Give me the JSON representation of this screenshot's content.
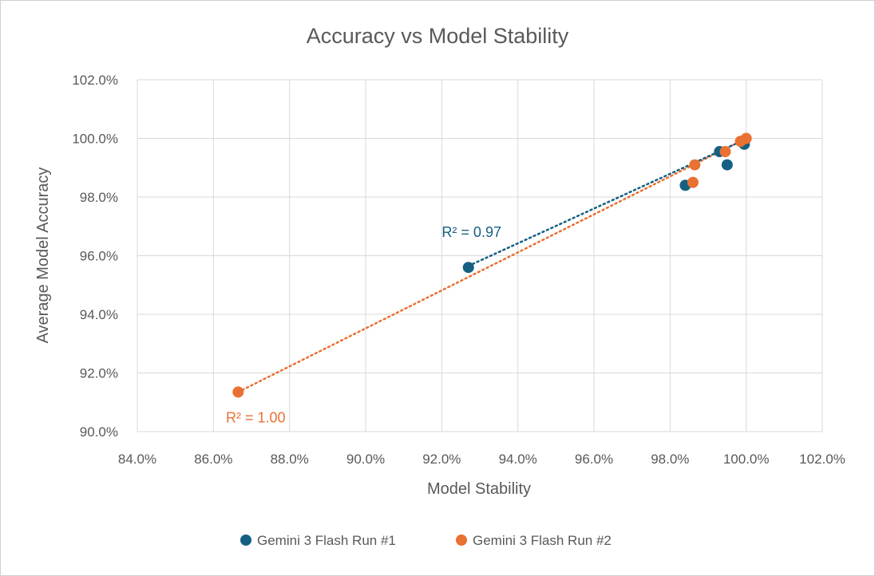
{
  "chart_data": {
    "type": "scatter",
    "title": "Accuracy vs Model Stability",
    "xlabel": "Model Stability",
    "ylabel": "Average Model Accuracy",
    "xlim": [
      84.0,
      102.0
    ],
    "ylim": [
      90.0,
      102.0
    ],
    "xticks": [
      84,
      86,
      88,
      90,
      92,
      94,
      96,
      98,
      100,
      102
    ],
    "yticks": [
      90,
      92,
      94,
      96,
      98,
      100,
      102
    ],
    "xtick_labels": [
      "84.0%",
      "86.0%",
      "88.0%",
      "90.0%",
      "92.0%",
      "94.0%",
      "96.0%",
      "98.0%",
      "100.0%",
      "102.0%"
    ],
    "ytick_labels": [
      "90.0%",
      "92.0%",
      "94.0%",
      "96.0%",
      "98.0%",
      "100.0%",
      "102.0%"
    ],
    "grid": true,
    "legend_position": "bottom",
    "series": [
      {
        "name": "Gemini 3 Flash Run #1",
        "color": "#156082",
        "points": [
          {
            "x": 92.7,
            "y": 95.6
          },
          {
            "x": 98.4,
            "y": 98.4
          },
          {
            "x": 99.3,
            "y": 99.55
          },
          {
            "x": 99.5,
            "y": 99.1
          },
          {
            "x": 99.95,
            "y": 99.8
          }
        ],
        "trendline": {
          "x_start": 92.7,
          "x_end": 99.95,
          "y_start": 95.65,
          "y_end": 99.95,
          "r2_label": "R² = 0.97"
        }
      },
      {
        "name": "Gemini 3 Flash Run #2",
        "color": "#E97132",
        "points": [
          {
            "x": 86.65,
            "y": 91.35
          },
          {
            "x": 98.6,
            "y": 98.5
          },
          {
            "x": 98.65,
            "y": 99.1
          },
          {
            "x": 99.45,
            "y": 99.55
          },
          {
            "x": 99.85,
            "y": 99.9
          },
          {
            "x": 100.0,
            "y": 100.0
          }
        ],
        "trendline": {
          "x_start": 86.65,
          "x_end": 100.0,
          "y_start": 91.35,
          "y_end": 100.0,
          "r2_label": "R² = 1.00"
        }
      }
    ]
  }
}
